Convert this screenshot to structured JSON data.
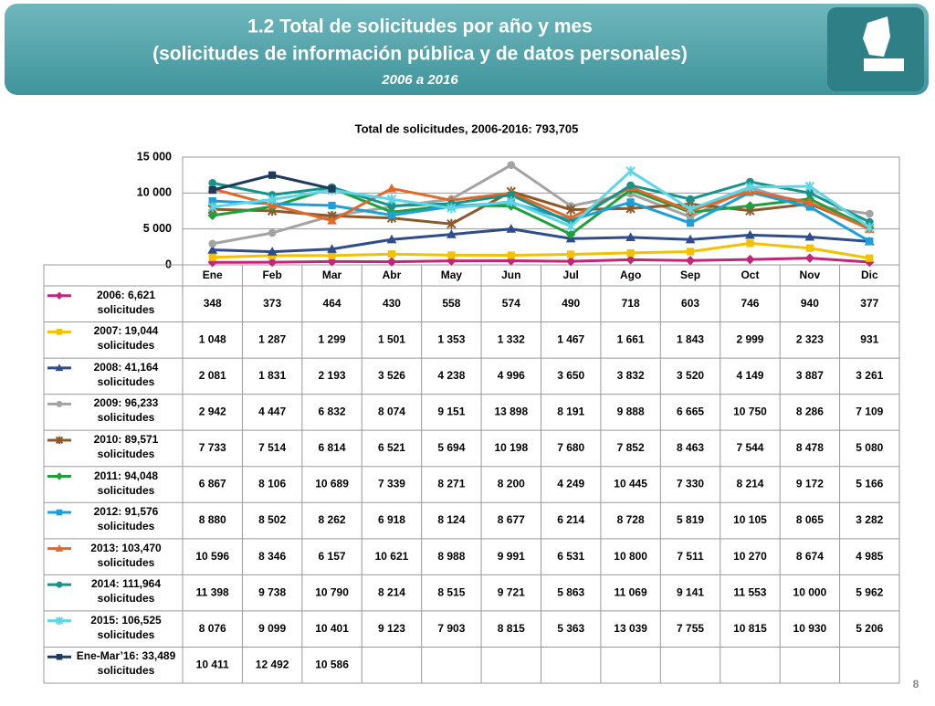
{
  "header": {
    "title_line1": "1.2 Total de solicitudes por año y mes",
    "title_line2": "(solicitudes de información pública y de datos personales)",
    "subtitle": "2006 a 2016"
  },
  "page_number": "8",
  "chart_data": {
    "type": "line",
    "title": "Total de solicitudes, 2006-2016: 793,705",
    "categories": [
      "Ene",
      "Feb",
      "Mar",
      "Abr",
      "May",
      "Jun",
      "Jul",
      "Ago",
      "Sep",
      "Oct",
      "Nov",
      "Dic"
    ],
    "ylim": [
      0,
      15000
    ],
    "yticks": [
      0,
      {
        "value": 5000,
        "label": "5 000"
      },
      {
        "value": 10000,
        "label": "10 000"
      },
      {
        "value": 15000,
        "label": "15 000"
      }
    ],
    "grid": true,
    "series": [
      {
        "name": "2006: 6,621 solicitudes",
        "color": "#c0267a",
        "marker": "diamond",
        "values": [
          348,
          373,
          464,
          430,
          558,
          574,
          490,
          718,
          603,
          746,
          940,
          377
        ],
        "value_labels": [
          "348",
          "373",
          "464",
          "430",
          "558",
          "574",
          "490",
          "718",
          "603",
          "746",
          "940",
          "377"
        ]
      },
      {
        "name": "2007: 19,044 solicitudes",
        "color": "#f2c200",
        "marker": "square",
        "values": [
          1048,
          1287,
          1299,
          1501,
          1353,
          1332,
          1467,
          1661,
          1843,
          2999,
          2323,
          931
        ],
        "value_labels": [
          "1 048",
          "1 287",
          "1 299",
          "1 501",
          "1 353",
          "1 332",
          "1 467",
          "1 661",
          "1 843",
          "2 999",
          "2 323",
          "931"
        ]
      },
      {
        "name": "2008: 41,164 solicitudes",
        "color": "#2f4d8a",
        "marker": "triangle",
        "values": [
          2081,
          1831,
          2193,
          3526,
          4238,
          4996,
          3650,
          3832,
          3520,
          4149,
          3887,
          3261
        ],
        "value_labels": [
          "2 081",
          "1 831",
          "2 193",
          "3 526",
          "4 238",
          "4 996",
          "3 650",
          "3 832",
          "3 520",
          "4 149",
          "3 887",
          "3 261"
        ]
      },
      {
        "name": "2009: 96,233 solicitudes",
        "color": "#a3a3a3",
        "marker": "circle",
        "values": [
          2942,
          4447,
          6832,
          8074,
          9151,
          13898,
          8191,
          9888,
          6665,
          10750,
          8286,
          7109
        ],
        "value_labels": [
          "2 942",
          "4 447",
          "6 832",
          "8 074",
          "9 151",
          "13 898",
          "8 191",
          "9 888",
          "6 665",
          "10 750",
          "8 286",
          "7 109"
        ]
      },
      {
        "name": "2010: 89,571 solicitudes",
        "color": "#8b5a2b",
        "marker": "star",
        "values": [
          7733,
          7514,
          6814,
          6521,
          5694,
          10198,
          7680,
          7852,
          8463,
          7544,
          8478,
          5080
        ],
        "value_labels": [
          "7 733",
          "7 514",
          "6 814",
          "6 521",
          "5 694",
          "10 198",
          "7 680",
          "7 852",
          "8 463",
          "7 544",
          "8 478",
          "5 080"
        ]
      },
      {
        "name": "2011: 94,048 solicitudes",
        "color": "#1fa03c",
        "marker": "diamond",
        "values": [
          6867,
          8106,
          10689,
          7339,
          8271,
          8200,
          4249,
          10445,
          7330,
          8214,
          9172,
          5166
        ],
        "value_labels": [
          "6 867",
          "8 106",
          "10 689",
          "7 339",
          "8 271",
          "8 200",
          "4 249",
          "10 445",
          "7 330",
          "8 214",
          "9 172",
          "5 166"
        ]
      },
      {
        "name": "2012: 91,576 solicitudes",
        "color": "#1e9fd8",
        "marker": "square",
        "values": [
          8880,
          8502,
          8262,
          6918,
          8124,
          8677,
          6214,
          8728,
          5819,
          10105,
          8065,
          3282
        ],
        "value_labels": [
          "8 880",
          "8 502",
          "8 262",
          "6 918",
          "8 124",
          "8 677",
          "6 214",
          "8 728",
          "5 819",
          "10 105",
          "8 065",
          "3 282"
        ]
      },
      {
        "name": "2013: 103,470 solicitudes",
        "color": "#e0692a",
        "marker": "triangle",
        "values": [
          10596,
          8346,
          6157,
          10621,
          8988,
          9991,
          6531,
          10800,
          7511,
          10270,
          8674,
          4985
        ],
        "value_labels": [
          "10 596",
          "8 346",
          "6 157",
          "10 621",
          "8 988",
          "9 991",
          "6 531",
          "10 800",
          "7 511",
          "10 270",
          "8 674",
          "4 985"
        ]
      },
      {
        "name": "2014: 111,964 solicitudes",
        "color": "#17938a",
        "marker": "circle",
        "values": [
          11398,
          9738,
          10790,
          8214,
          8515,
          9721,
          5863,
          11069,
          9141,
          11553,
          10000,
          5962
        ],
        "value_labels": [
          "11 398",
          "9 738",
          "10 790",
          "8 214",
          "8 515",
          "9 721",
          "5 863",
          "11 069",
          "9 141",
          "11 553",
          "10 000",
          "5 962"
        ]
      },
      {
        "name": "2015: 106,525 solicitudes",
        "color": "#5fd6e6",
        "marker": "star",
        "values": [
          8076,
          9099,
          10401,
          9123,
          7903,
          8815,
          5363,
          13039,
          7755,
          10815,
          10930,
          5206
        ],
        "value_labels": [
          "8 076",
          "9 099",
          "10 401",
          "9 123",
          "7 903",
          "8 815",
          "5 363",
          "13 039",
          "7 755",
          "10 815",
          "10 930",
          "5 206"
        ]
      },
      {
        "name": "Ene-Mar’16: 33,489 solicitudes",
        "color": "#1f3b5c",
        "marker": "square",
        "values": [
          10411,
          12492,
          10586,
          null,
          null,
          null,
          null,
          null,
          null,
          null,
          null,
          null
        ],
        "value_labels": [
          "10 411",
          "12 492",
          "10 586",
          null,
          null,
          null,
          null,
          null,
          null,
          null,
          null,
          null
        ]
      }
    ]
  }
}
